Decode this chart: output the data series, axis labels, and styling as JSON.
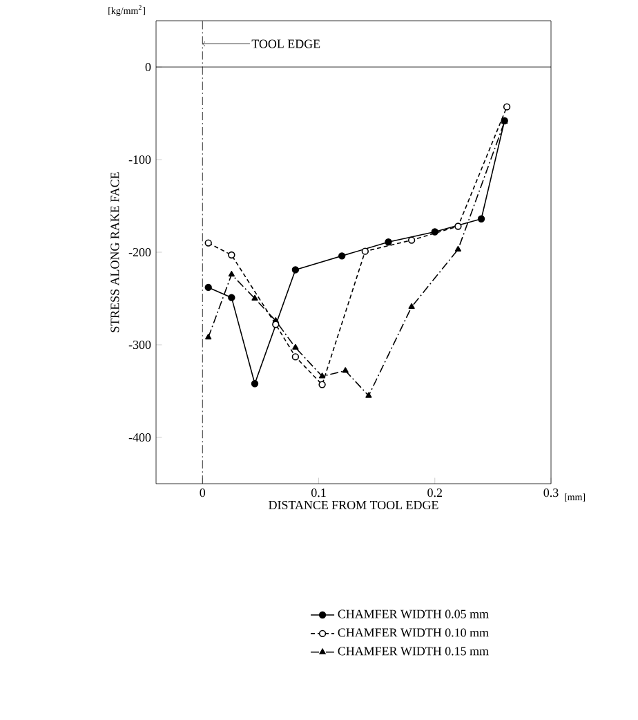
{
  "chart_data": {
    "type": "line",
    "xlabel": "DISTANCE FROM TOOL EDGE",
    "ylabel": "STRESS ALONG RAKE FACE",
    "annotations": [
      "[kg/mm$^{2}$]",
      "[mm]"
    ],
    "xlim": [
      -0.04,
      0.3
    ],
    "ylim": [
      -450,
      50
    ],
    "xticks": [
      0,
      0.1,
      0.2,
      0.3
    ],
    "yticks": [
      0,
      -100,
      -200,
      -300,
      -400
    ],
    "ref_lines": [
      {
        "axis": "x",
        "value": 0,
        "label": "TOOL EDGE",
        "line_style": "dashed"
      },
      {
        "axis": "y",
        "value": 0,
        "label": null,
        "line_style": "solid"
      }
    ],
    "legend": "bottom",
    "grid": false,
    "series": [
      {
        "name": "CHAMFER WIDTH 0.05 mm",
        "color": "#000000",
        "marker": "circle",
        "line_style": "solid",
        "x": [
          0.005,
          0.025,
          0.045,
          0.08,
          0.12,
          0.16,
          0.2,
          0.24,
          0.26
        ],
        "values": [
          -238,
          -249,
          -342,
          -219,
          -204,
          -189,
          -178,
          -164,
          -58
        ]
      },
      {
        "name": "CHAMFER WIDTH 0.10 mm",
        "color": "#000000",
        "marker": "circle",
        "line_style": "dotted",
        "x": [
          0.005,
          0.025,
          0.063,
          0.08,
          0.103,
          0.14,
          0.18,
          0.22,
          0.262
        ],
        "values": [
          -190,
          -203,
          -278,
          -313,
          -343,
          -199,
          -187,
          -172,
          -43
        ]
      },
      {
        "name": "CHAMFER WIDTH 0.15 mm",
        "color": "#000000",
        "marker": "triangle",
        "line_style": "dashed",
        "x": [
          0.005,
          0.025,
          0.045,
          0.063,
          0.08,
          0.103,
          0.123,
          0.143,
          0.18,
          0.22,
          0.26
        ],
        "values": [
          -292,
          -224,
          -250,
          -274,
          -303,
          -334,
          -328,
          -355,
          -259,
          -197,
          -59
        ]
      }
    ]
  }
}
